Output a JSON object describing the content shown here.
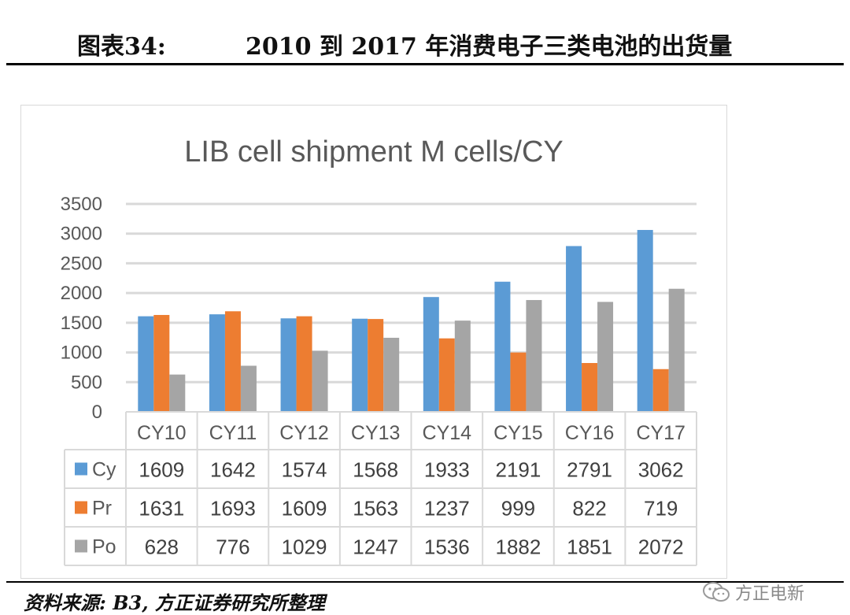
{
  "header": {
    "figure_number": "图表34:",
    "title": "2010 到 2017 年消费电子三类电池的出货量"
  },
  "chart_data": {
    "type": "bar",
    "title": "LIB cell shipment M cells/CY",
    "categories": [
      "CY10",
      "CY11",
      "CY12",
      "CY13",
      "CY14",
      "CY15",
      "CY16",
      "CY17"
    ],
    "series": [
      {
        "name": "Cy",
        "color": "#5b9bd5",
        "values": [
          1609,
          1642,
          1574,
          1568,
          1933,
          2191,
          2791,
          3062
        ]
      },
      {
        "name": "Pr",
        "color": "#ed7d31",
        "values": [
          1631,
          1693,
          1609,
          1563,
          1237,
          999,
          822,
          719
        ]
      },
      {
        "name": "Po",
        "color": "#a5a5a5",
        "values": [
          628,
          776,
          1029,
          1247,
          1536,
          1882,
          1851,
          2072
        ]
      }
    ],
    "ylim": [
      0,
      3500
    ],
    "yticks": [
      0,
      500,
      1000,
      1500,
      2000,
      2500,
      3000,
      3500
    ],
    "grid": true,
    "legend": "data-table"
  },
  "footer": {
    "source": "资料来源: B3, 方正证券研究所整理",
    "watermark": "方正电新"
  }
}
